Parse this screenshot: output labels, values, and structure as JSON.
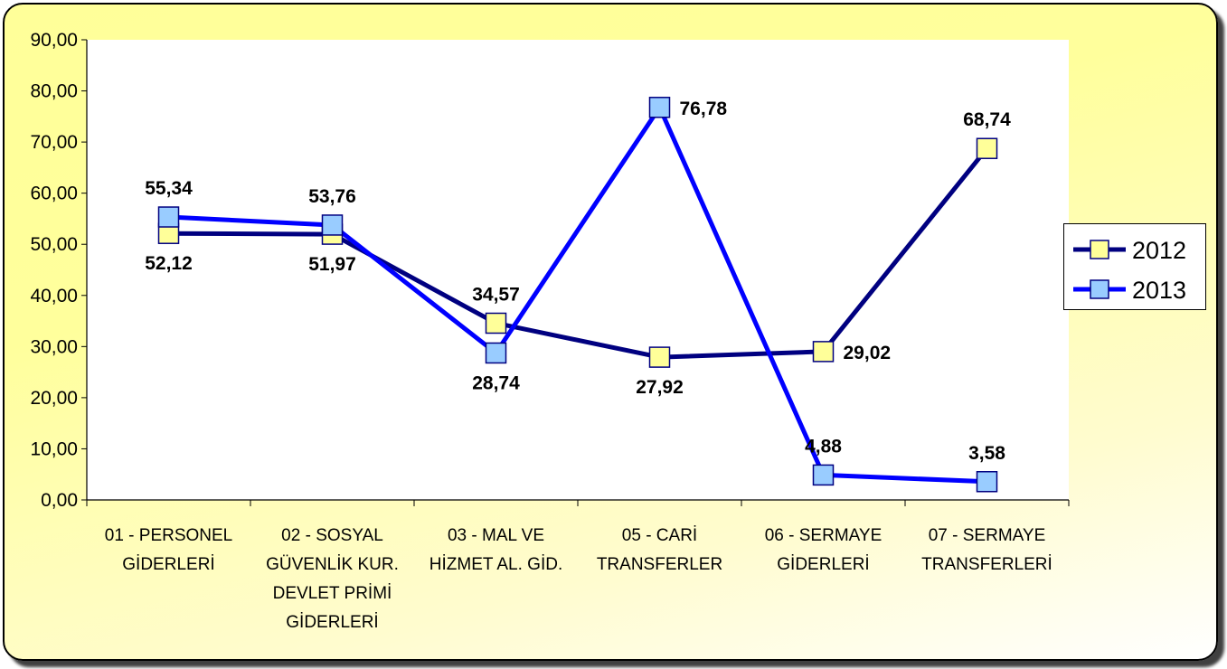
{
  "chart_data": {
    "type": "line",
    "categories": [
      [
        "01 - PERSONEL",
        "GİDERLERİ"
      ],
      [
        "02 - SOSYAL",
        "GÜVENLİK KUR.",
        "DEVLET PRİMİ",
        "GİDERLERİ"
      ],
      [
        "03 - MAL VE",
        "HİZMET AL. GİD."
      ],
      [
        "05 - CARİ",
        "TRANSFERLER"
      ],
      [
        "06 - SERMAYE",
        "GİDERLERİ"
      ],
      [
        "07 - SERMAYE",
        "TRANSFERLERİ"
      ]
    ],
    "series": [
      {
        "name": "2012",
        "values": [
          52.12,
          51.97,
          34.57,
          27.92,
          29.02,
          68.74
        ],
        "labels": [
          "52,12",
          "51,97",
          "34,57",
          "27,92",
          "29,02",
          "68,74"
        ],
        "label_pos": [
          "below",
          "below",
          "above",
          "below",
          "right",
          "above"
        ],
        "line_color": "#000080",
        "marker_color": "#ffff99"
      },
      {
        "name": "2013",
        "values": [
          55.34,
          53.76,
          28.74,
          76.78,
          4.88,
          3.58
        ],
        "labels": [
          "55,34",
          "53,76",
          "28,74",
          "76,78",
          "4,88",
          "3,58"
        ],
        "label_pos": [
          "above",
          "above",
          "below",
          "right",
          "above",
          "above"
        ],
        "line_color": "#0000ff",
        "marker_color": "#99ccff"
      }
    ],
    "y_ticks": [
      "0,00",
      "10,00",
      "20,00",
      "30,00",
      "40,00",
      "50,00",
      "60,00",
      "70,00",
      "80,00",
      "90,00"
    ],
    "ylim": [
      0,
      90
    ],
    "y_step": 10,
    "grid": false,
    "legend_position": "right",
    "background_color": "#ffff99",
    "plot_area_color": "#ffffff"
  }
}
